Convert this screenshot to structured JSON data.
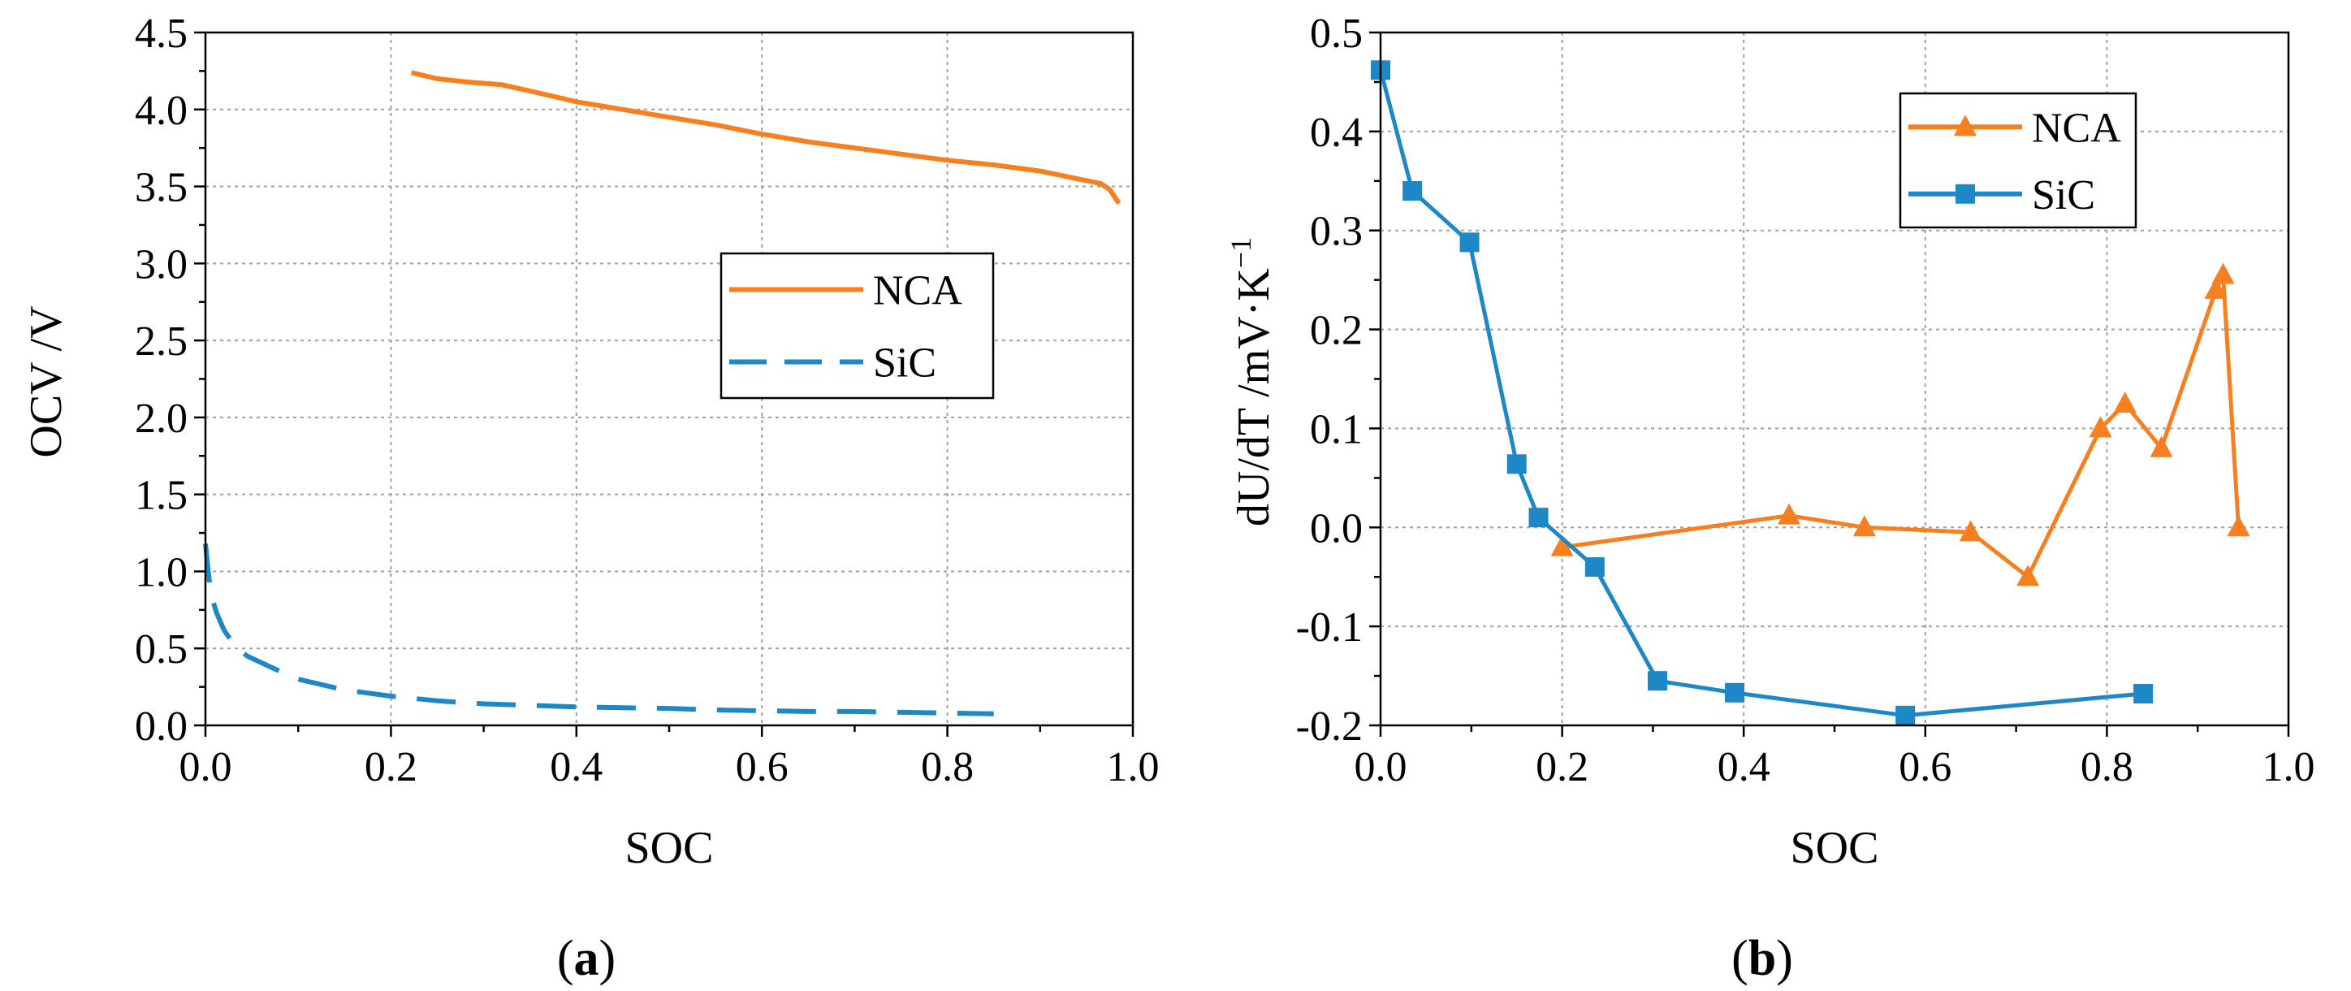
{
  "figure": {
    "panel_a_caption": {
      "open": "(",
      "letter": "a",
      "close": ")"
    },
    "panel_b_caption": {
      "open": "(",
      "letter": "b",
      "close": ")"
    }
  },
  "colors": {
    "nca": "#F77F1F",
    "sic": "#1E88C6",
    "grid": "#A0A0A0",
    "axis": "#000000"
  },
  "chart_data": [
    {
      "id": "a",
      "type": "line",
      "title": "",
      "xlabel": "SOC",
      "ylabel": "OCV /V",
      "xlim": [
        0,
        1.0
      ],
      "ylim": [
        0,
        4.5
      ],
      "xticks": [
        "0.0",
        "0.2",
        "0.4",
        "0.6",
        "0.8",
        "1.0"
      ],
      "xtick_values": [
        0,
        0.2,
        0.4,
        0.6,
        0.8,
        1.0
      ],
      "yticks": [
        "0.0",
        "0.5",
        "1.0",
        "1.5",
        "2.0",
        "2.5",
        "3.0",
        "3.5",
        "4.0",
        "4.5"
      ],
      "ytick_values": [
        0,
        0.5,
        1.0,
        1.5,
        2.0,
        2.5,
        3.0,
        3.5,
        4.0,
        4.5
      ],
      "grid": true,
      "legend_position": "right-middle",
      "series": [
        {
          "name": "NCA",
          "style": "solid",
          "x": [
            0.222,
            0.25,
            0.28,
            0.32,
            0.35,
            0.4,
            0.45,
            0.5,
            0.55,
            0.6,
            0.65,
            0.7,
            0.75,
            0.8,
            0.85,
            0.9,
            0.94,
            0.965,
            0.975,
            0.985
          ],
          "y": [
            4.24,
            4.2,
            4.18,
            4.16,
            4.12,
            4.05,
            4.0,
            3.95,
            3.9,
            3.84,
            3.79,
            3.75,
            3.71,
            3.67,
            3.64,
            3.6,
            3.55,
            3.52,
            3.48,
            3.39
          ]
        },
        {
          "name": "SiC",
          "style": "dashed",
          "x": [
            0.0,
            0.003,
            0.006,
            0.012,
            0.02,
            0.03,
            0.045,
            0.07,
            0.1,
            0.15,
            0.2,
            0.25,
            0.3,
            0.35,
            0.4,
            0.45,
            0.5,
            0.55,
            0.6,
            0.65,
            0.7,
            0.75,
            0.8,
            0.85
          ],
          "y": [
            1.18,
            1.0,
            0.85,
            0.73,
            0.62,
            0.53,
            0.45,
            0.38,
            0.3,
            0.23,
            0.19,
            0.16,
            0.14,
            0.13,
            0.12,
            0.115,
            0.11,
            0.1,
            0.095,
            0.09,
            0.09,
            0.085,
            0.08,
            0.075
          ]
        }
      ]
    },
    {
      "id": "b",
      "type": "line",
      "title": "",
      "xlabel": "SOC",
      "ylabel": "dU/dT /mV·K",
      "ylabel_sup": "−1",
      "xlim": [
        0,
        1.0
      ],
      "ylim": [
        -0.2,
        0.5
      ],
      "xticks": [
        "0.0",
        "0.2",
        "0.4",
        "0.6",
        "0.8",
        "1.0"
      ],
      "xtick_values": [
        0,
        0.2,
        0.4,
        0.6,
        0.8,
        1.0
      ],
      "yticks": [
        "-0.2",
        "-0.1",
        "0.0",
        "0.1",
        "0.2",
        "0.3",
        "0.4",
        "0.5"
      ],
      "ytick_values": [
        -0.2,
        -0.1,
        0.0,
        0.1,
        0.2,
        0.3,
        0.4,
        0.5
      ],
      "grid": true,
      "legend_position": "top-right",
      "series": [
        {
          "name": "NCA",
          "marker": "triangle",
          "x": [
            0.2,
            0.45,
            0.533,
            0.65,
            0.713,
            0.793,
            0.82,
            0.86,
            0.92,
            0.928,
            0.945
          ],
          "y": [
            -0.02,
            0.012,
            0.0,
            -0.005,
            -0.05,
            0.1,
            0.125,
            0.08,
            0.24,
            0.255,
            0.0
          ]
        },
        {
          "name": "SiC",
          "marker": "square",
          "x": [
            0.0,
            0.035,
            0.098,
            0.15,
            0.174,
            0.236,
            0.305,
            0.39,
            0.578,
            0.84
          ],
          "y": [
            0.462,
            0.34,
            0.288,
            0.064,
            0.01,
            -0.04,
            -0.155,
            -0.167,
            -0.19,
            -0.168
          ]
        }
      ]
    }
  ]
}
